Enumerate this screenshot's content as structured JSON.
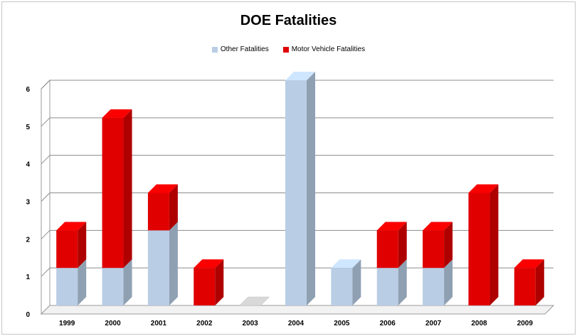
{
  "chart_data": {
    "type": "bar",
    "stacked": true,
    "three_d": true,
    "title": "DOE Fatalities",
    "xlabel": "",
    "ylabel": "",
    "categories": [
      "1999",
      "2000",
      "2001",
      "2002",
      "2003",
      "2004",
      "2005",
      "2006",
      "2007",
      "2008",
      "2009"
    ],
    "series": [
      {
        "name": "Other Fatalities",
        "values": [
          1,
          1,
          2,
          0,
          0,
          6,
          1,
          1,
          1,
          0,
          0
        ],
        "color": "#b9cde5"
      },
      {
        "name": "Motor Vehicle Fatalities",
        "values": [
          1,
          4,
          1,
          1,
          0,
          0,
          0,
          1,
          1,
          3,
          1
        ],
        "color": "#e00000"
      }
    ],
    "y_ticks": [
      "0",
      "1",
      "2",
      "3",
      "4",
      "5",
      "6"
    ],
    "ylim": [
      0,
      6
    ],
    "grid": true,
    "legend_position": "top"
  }
}
